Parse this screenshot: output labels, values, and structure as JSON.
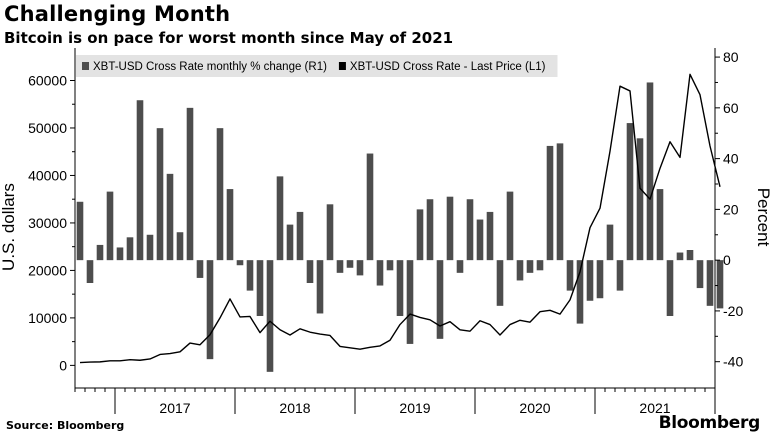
{
  "header": {
    "title": "Challenging Month",
    "subtitle": "Bitcoin is on pace for worst month since May of 2021"
  },
  "footer": {
    "source": "Source: Bloomberg",
    "brand": "Bloomberg"
  },
  "colors": {
    "bars": "#4d4d4d",
    "line": "#000000",
    "legend_bg": "#e3e3e3",
    "axis": "#000000"
  },
  "chart_data": {
    "type": "bar+line",
    "legend": [
      {
        "name": "XBT-USD Cross Rate monthly % change (R1)",
        "swatch": "bar"
      },
      {
        "name": "XBT-USD Cross Rate - Last Price (L1)",
        "swatch": "line"
      }
    ],
    "legend_position": "top-left",
    "grid": false,
    "left_axis": {
      "label": "U.S. dollars",
      "range": [
        -3500,
        66000
      ],
      "ticks": [
        0,
        10000,
        20000,
        30000,
        40000,
        50000,
        60000
      ]
    },
    "right_axis": {
      "label": "Percent",
      "range": [
        -48,
        82
      ],
      "ticks": [
        -40,
        -20,
        0,
        20,
        40,
        60,
        80
      ]
    },
    "x_axis": {
      "start": "2016-09",
      "end": "2022-01",
      "year_labels": [
        "2017",
        "2018",
        "2019",
        "2020",
        "2021"
      ]
    },
    "months": [
      "2016-09",
      "2016-10",
      "2016-11",
      "2016-12",
      "2017-01",
      "2017-02",
      "2017-03",
      "2017-04",
      "2017-05",
      "2017-06",
      "2017-07",
      "2017-08",
      "2017-09",
      "2017-10",
      "2017-11",
      "2017-12",
      "2018-01",
      "2018-02",
      "2018-03",
      "2018-04",
      "2018-05",
      "2018-06",
      "2018-07",
      "2018-08",
      "2018-09",
      "2018-10",
      "2018-11",
      "2018-12",
      "2019-01",
      "2019-02",
      "2019-03",
      "2019-04",
      "2019-05",
      "2019-06",
      "2019-07",
      "2019-08",
      "2019-09",
      "2019-10",
      "2019-11",
      "2019-12",
      "2020-01",
      "2020-02",
      "2020-03",
      "2020-04",
      "2020-05",
      "2020-06",
      "2020-07",
      "2020-08",
      "2020-09",
      "2020-10",
      "2020-11",
      "2020-12",
      "2021-01",
      "2021-02",
      "2021-03",
      "2021-04",
      "2021-05",
      "2021-06",
      "2021-07",
      "2021-08",
      "2021-09",
      "2021-10",
      "2021-11",
      "2021-12",
      "2022-01"
    ],
    "series": [
      {
        "name": "XBT-USD Cross Rate monthly % change (R1)",
        "axis": "right",
        "style": "bar",
        "values": [
          23,
          -9,
          6,
          27,
          5,
          9,
          63,
          10,
          52,
          34,
          11,
          60,
          -7,
          -39,
          52,
          28,
          -2,
          -12,
          -22,
          -44,
          33,
          14,
          19,
          -9,
          -21,
          22,
          -5,
          -3,
          -6,
          42,
          -10,
          -4,
          -22,
          -33,
          20,
          24,
          -31,
          25,
          -5,
          24,
          16,
          19,
          -18,
          27,
          -8,
          -5,
          -4,
          45,
          46,
          -12,
          -25,
          -16,
          -15,
          14,
          -12,
          54,
          48,
          70,
          28,
          -22,
          3,
          4,
          -11,
          -18,
          -19
        ]
      },
      {
        "name": "XBT-USD Cross Rate - Last Price (L1)",
        "axis": "left",
        "style": "line",
        "values": [
          600,
          700,
          740,
          960,
          970,
          1190,
          1080,
          1350,
          2300,
          2500,
          2860,
          4700,
          4340,
          6450,
          10000,
          14000,
          10200,
          10300,
          6900,
          9300,
          7500,
          6400,
          7700,
          7000,
          6600,
          6300,
          4000,
          3700,
          3400,
          3800,
          4100,
          5300,
          8600,
          10800,
          10100,
          9600,
          8300,
          9200,
          7500,
          7200,
          9400,
          8600,
          6400,
          8600,
          9500,
          9100,
          11300,
          11600,
          10800,
          13800,
          19700,
          29000,
          33100,
          45100,
          58800,
          57800,
          37300,
          35000,
          41500,
          47100,
          43800,
          61300,
          57000,
          46200,
          37600
        ]
      }
    ]
  }
}
